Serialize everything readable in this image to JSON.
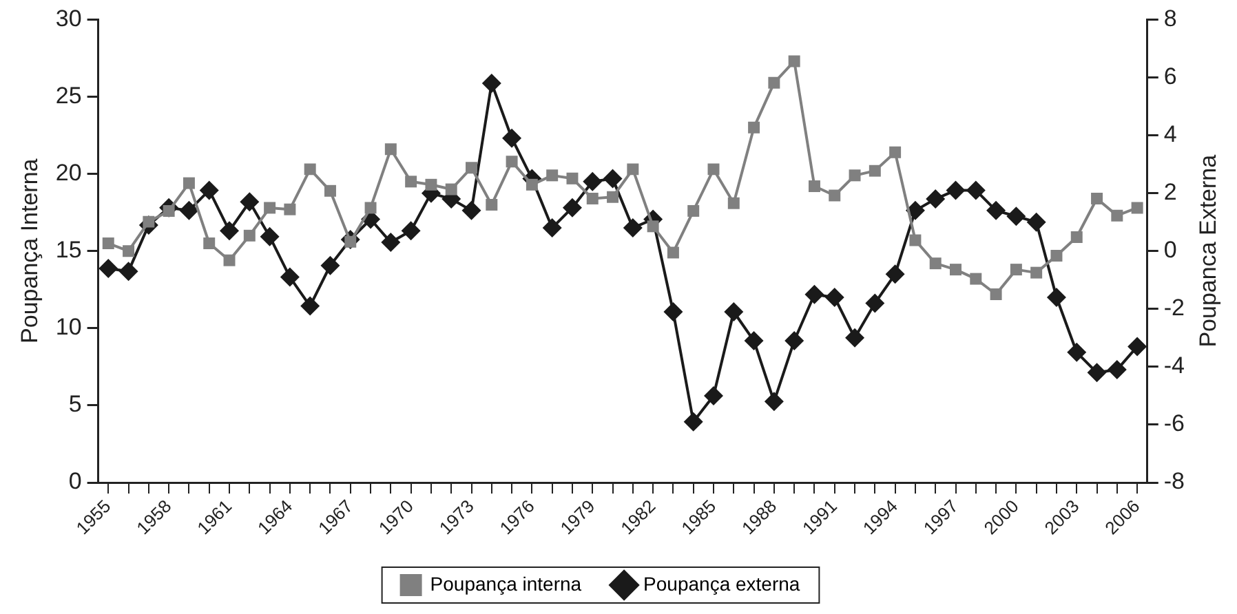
{
  "chart_data": {
    "type": "line",
    "xlabel": null,
    "ylabel": "Poupança Interna",
    "y2label": "Poupanca Externa",
    "categories": [
      "1955",
      null,
      null,
      "1958",
      null,
      null,
      "1961",
      null,
      null,
      "1964",
      null,
      null,
      "1967",
      null,
      null,
      "1970",
      null,
      null,
      "1973",
      null,
      null,
      "1976",
      null,
      null,
      "1979",
      null,
      null,
      "1982",
      null,
      null,
      "1985",
      null,
      null,
      "1988",
      null,
      null,
      "1991",
      null,
      null,
      "1994",
      null,
      null,
      "1997",
      null,
      null,
      "2000",
      null,
      null,
      "2003",
      null,
      null,
      "2006"
    ],
    "series": [
      {
        "name": "Poupança interna",
        "color": "#808080",
        "marker": "square",
        "values": [
          15.5,
          15.0,
          16.9,
          17.6,
          19.4,
          15.5,
          14.4,
          16.0,
          17.8,
          17.7,
          20.3,
          18.9,
          15.6,
          17.8,
          21.6,
          19.5,
          19.3,
          19.0,
          20.4,
          18.0,
          20.8,
          19.3,
          19.9,
          19.7,
          18.4,
          18.5,
          20.3,
          16.6,
          14.9,
          17.6,
          20.3,
          18.1,
          23.0,
          25.9,
          27.3,
          19.2,
          18.6,
          19.9,
          20.2,
          21.4,
          15.7,
          14.2,
          13.8,
          13.2,
          12.2,
          13.8,
          13.6,
          14.7,
          15.9,
          18.4,
          17.3,
          17.8
        ]
      },
      {
        "name": "Poupança externa",
        "color": "#1a1a1a",
        "marker": "diamond",
        "axis": "y2",
        "values": [
          -0.6,
          -0.7,
          0.9,
          1.5,
          1.4,
          2.1,
          0.7,
          1.7,
          0.5,
          -0.9,
          -1.9,
          -0.5,
          0.4,
          1.1,
          0.3,
          0.7,
          2.0,
          1.8,
          1.4,
          5.8,
          3.9,
          2.5,
          0.8,
          1.5,
          2.4,
          2.5,
          0.8,
          1.1,
          -2.1,
          -5.9,
          -5.0,
          -2.1,
          -3.1,
          -5.2,
          -3.1,
          -1.5,
          -1.6,
          -3.0,
          -1.8,
          -0.8,
          1.4,
          1.8,
          2.1,
          2.1,
          1.4,
          1.2,
          1.0,
          -1.6,
          -3.5,
          -4.2,
          -4.1,
          -3.3
        ]
      }
    ],
    "ylim": [
      0,
      30
    ],
    "yticks": [
      0,
      5,
      10,
      15,
      20,
      25,
      30
    ],
    "y2lim": [
      -8,
      8
    ],
    "y2ticks": [
      -8,
      -6,
      -4,
      -2,
      0,
      2,
      4,
      6,
      8
    ],
    "grid": false,
    "legend": "bottom",
    "line_style": "solid"
  }
}
